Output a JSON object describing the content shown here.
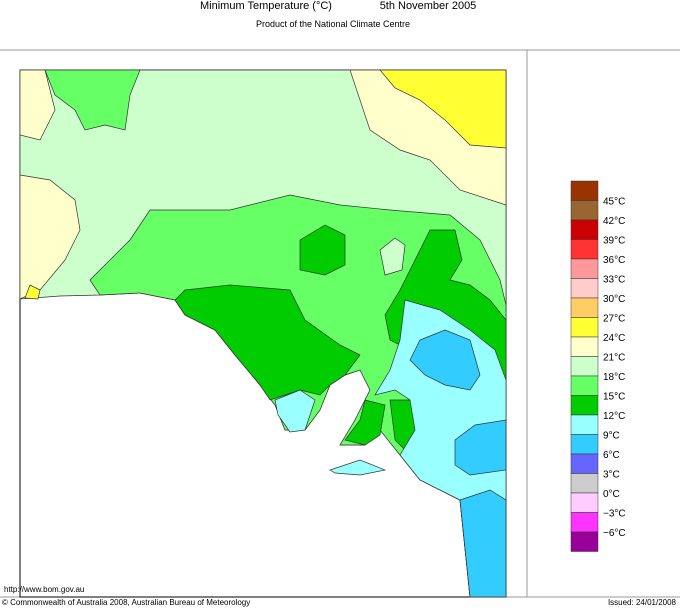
{
  "header": {
    "title": "Minimum Temperature (°C)",
    "date": "5th November 2005",
    "subtitle": "Product of the National Climate Centre"
  },
  "legend": {
    "labels": [
      "45°C",
      "42°C",
      "39°C",
      "36°C",
      "33°C",
      "30°C",
      "27°C",
      "24°C",
      "21°C",
      "18°C",
      "15°C",
      "12°C",
      "9°C",
      "6°C",
      "3°C",
      "0°C",
      "−3°C",
      "−6°C"
    ],
    "colors": [
      "#993300",
      "#996633",
      "#cc0000",
      "#ff3333",
      "#ff9999",
      "#ffcccc",
      "#ffcc66",
      "#ffff33",
      "#ffffcc",
      "#ccffcc",
      "#66ff66",
      "#00cc00",
      "#99ffff",
      "#33ccff",
      "#6666ff",
      "#cccccc",
      "#ffccff",
      "#ff33ff",
      "#990099"
    ]
  },
  "footer": {
    "url": "http://www.bom.gov.au",
    "copyright": "© Commonwealth of Australia 2008, Australian Bureau of Meteorology",
    "issued": "Issued: 24/01/2008"
  }
}
